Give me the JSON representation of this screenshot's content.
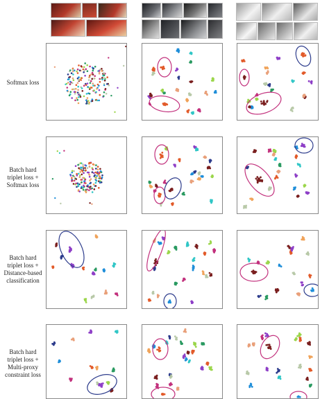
{
  "figure": {
    "columns": [
      {
        "key": "col-1",
        "caption_visible": false,
        "thumbnail_subject": "red sedan images (same vehicle)"
      },
      {
        "key": "col-2",
        "caption_visible": false,
        "thumbnail_subject": "grey SUV / car images (mixed views)"
      },
      {
        "key": "col-3",
        "caption_visible": false,
        "thumbnail_subject": "white sedan images (same vehicle)"
      }
    ],
    "rows": [
      {
        "key": "row-softmax",
        "label_lines": [
          "Softmax loss"
        ]
      },
      {
        "key": "row-triplet-softmax",
        "label_lines": [
          "Batch hard",
          "triplet loss +",
          "Softmax loss"
        ]
      },
      {
        "key": "row-triplet-distance",
        "label_lines": [
          "Batch hard",
          "triplet loss +",
          "Distance-based",
          "classification"
        ]
      },
      {
        "key": "row-triplet-multiproxy",
        "label_lines": [
          "Batch hard",
          "triplet loss +",
          "Multi-proxy",
          "constraint loss"
        ]
      }
    ],
    "colors": {
      "palette": [
        "#e25b2a",
        "#8e3fc7",
        "#b8c9a8",
        "#7a1f1f",
        "#e9a07a",
        "#9bd64b",
        "#1f8ed9",
        "#30c6c6",
        "#c2317d",
        "#2a9a61",
        "#2d3c8c",
        "#f0a35a"
      ],
      "ellipse_red_cluster": "#c2317d",
      "ellipse_navy_cluster": "#2d3c8c",
      "panel_border": "#888888"
    }
  }
}
